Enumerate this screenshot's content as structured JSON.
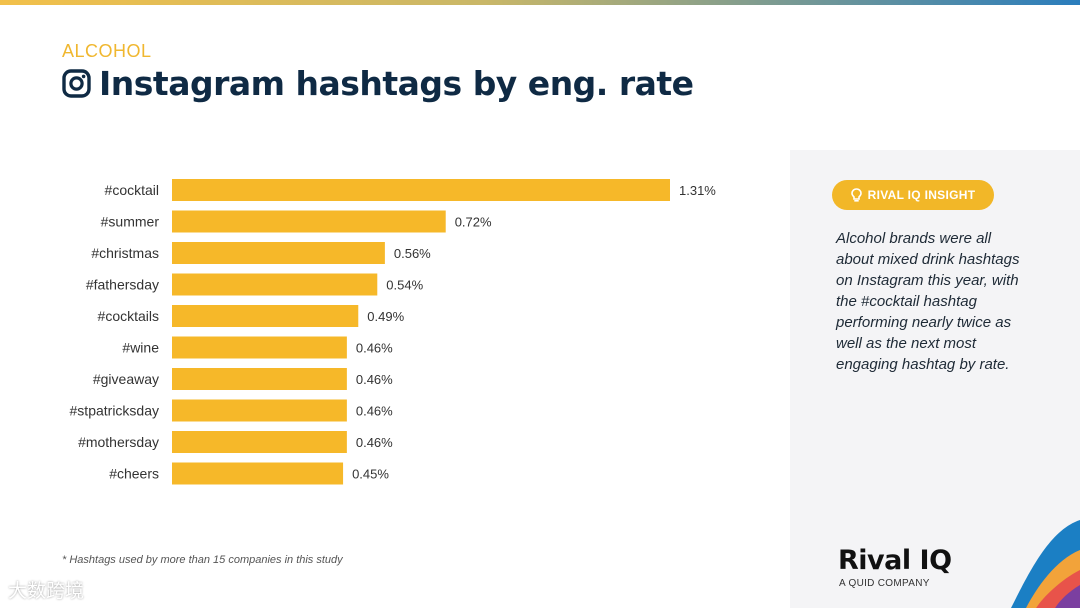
{
  "header": {
    "category": "ALCOHOL",
    "title": "Instagram hashtags by eng. rate"
  },
  "chart_data": {
    "type": "bar",
    "orientation": "horizontal",
    "categories": [
      "#cocktail",
      "#summer",
      "#christmas",
      "#fathersday",
      "#cocktails",
      "#wine",
      "#giveaway",
      "#stpatricksday",
      "#mothersday",
      "#cheers"
    ],
    "values": [
      1.31,
      0.72,
      0.56,
      0.54,
      0.49,
      0.46,
      0.46,
      0.46,
      0.46,
      0.45
    ],
    "value_labels": [
      "1.31%",
      "0.72%",
      "0.56%",
      "0.54%",
      "0.49%",
      "0.46%",
      "0.46%",
      "0.46%",
      "0.46%",
      "0.45%"
    ],
    "bar_color": "#f6b829",
    "xlim": [
      0,
      1.31
    ],
    "grid": false
  },
  "footnote": "* Hashtags used by more than 15 companies in this study",
  "insight": {
    "badge": "RIVAL IQ INSIGHT",
    "text": "Alcohol brands were all about mixed drink hashtags on Instagram this year, with the #cocktail hashtag performing nearly twice as well as the next most engaging hashtag by rate."
  },
  "logo": {
    "name": "Rival IQ",
    "subtitle": "A QUID COMPANY"
  },
  "watermark": "大数跨境",
  "colors": {
    "accent": "#f0b72f",
    "title": "#0f2a44",
    "bar": "#f6b829"
  }
}
